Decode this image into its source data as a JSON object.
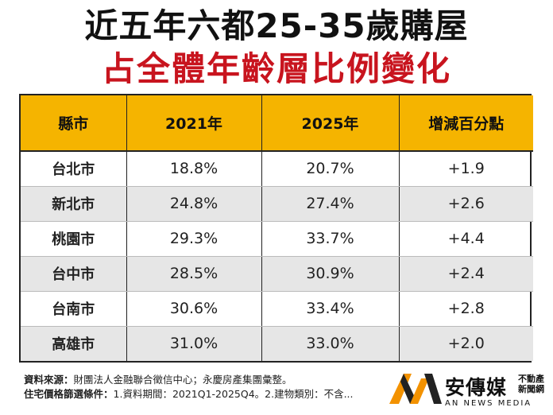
{
  "title": {
    "line1": "近五年六都25-35歲購屋",
    "line2": "占全體年齡層比例變化"
  },
  "table": {
    "headers": [
      "縣市",
      "2021年",
      "2025年",
      "增減百分點"
    ],
    "rows": [
      {
        "city": "台北市",
        "y2021": "18.8%",
        "y2025": "20.7%",
        "change": "+1.9"
      },
      {
        "city": "新北市",
        "y2021": "24.8%",
        "y2025": "27.4%",
        "change": "+2.6"
      },
      {
        "city": "桃園市",
        "y2021": "29.3%",
        "y2025": "33.7%",
        "change": "+4.4"
      },
      {
        "city": "台中市",
        "y2021": "28.5%",
        "y2025": "30.9%",
        "change": "+2.4"
      },
      {
        "city": "台南市",
        "y2021": "30.6%",
        "y2025": "33.4%",
        "change": "+2.8"
      },
      {
        "city": "高雄市",
        "y2021": "31.0%",
        "y2025": "33.0%",
        "change": "+2.0"
      }
    ]
  },
  "footer": {
    "source_label": "資料來源：",
    "source_text": "財團法人金融聯合徵信中心；永慶房產集團彙整。",
    "criteria_label": "住宅價格篩選條件：",
    "criteria_text": "1.資料期間：2021Q1-2025Q4。2.建物類別：不含..."
  },
  "logo": {
    "name": "安傳媒",
    "sub": "不動產新聞網",
    "en": "AN NEWS MEDIA",
    "colors": {
      "orange": "#f39200",
      "dark": "#222222"
    }
  }
}
